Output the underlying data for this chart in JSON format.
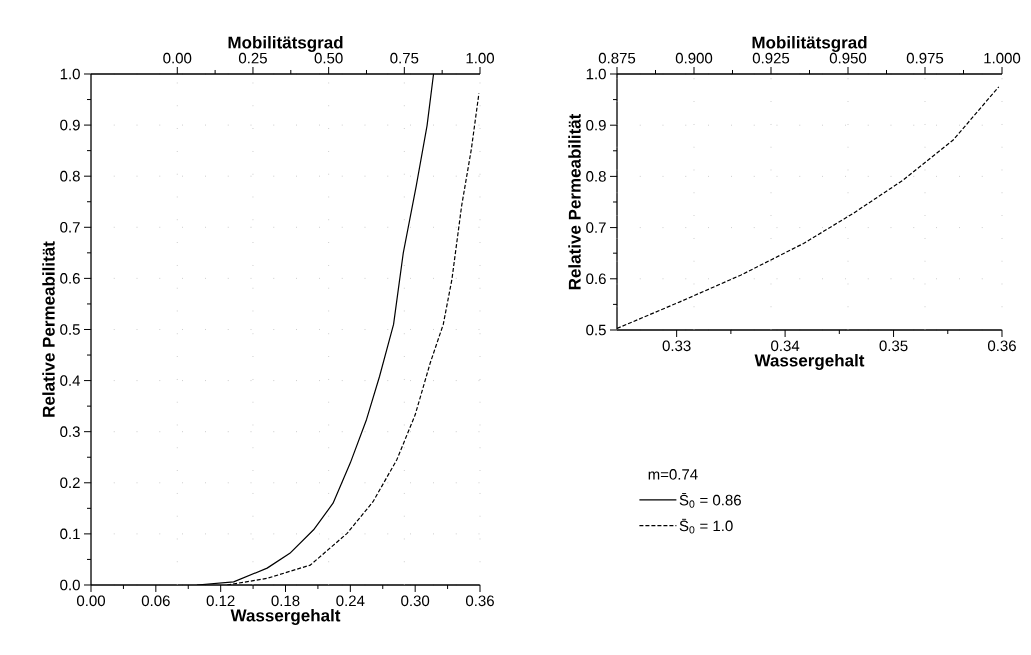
{
  "chart_data": [
    {
      "type": "line",
      "xlabel": "Wassergehalt",
      "x2label": "Mobilitätsgrad",
      "ylabel": "Relative Permeabilität",
      "legend_title": "m=0.74",
      "legend": "right",
      "grid": true,
      "marker": "none",
      "xlim": [
        0,
        0.36
      ],
      "ylim": [
        0,
        1
      ],
      "x2lim": [
        -0.285,
        1.0
      ],
      "xticks": [
        {
          "value": 0,
          "label": "0.00"
        },
        {
          "value": 0.06,
          "label": "0.06"
        },
        {
          "value": 0.12,
          "label": "0.12"
        },
        {
          "value": 0.18,
          "label": "0.18"
        },
        {
          "value": 0.24,
          "label": "0.24"
        },
        {
          "value": 0.3,
          "label": "0.30"
        },
        {
          "value": 0.36,
          "label": "0.36"
        }
      ],
      "x2ticks": [
        {
          "value": 0,
          "label": "0.00"
        },
        {
          "value": 0.25,
          "label": "0.25"
        },
        {
          "value": 0.5,
          "label": "0.50"
        },
        {
          "value": 0.75,
          "label": "0.75"
        },
        {
          "value": 1.0,
          "label": "1.00"
        }
      ],
      "yticks": [
        {
          "value": 0,
          "label": "0.0"
        },
        {
          "value": 0.1,
          "label": "0.1"
        },
        {
          "value": 0.2,
          "label": "0.2"
        },
        {
          "value": 0.3,
          "label": "0.3"
        },
        {
          "value": 0.4,
          "label": "0.4"
        },
        {
          "value": 0.5,
          "label": "0.5"
        },
        {
          "value": 0.6,
          "label": "0.6"
        },
        {
          "value": 0.7,
          "label": "0.7"
        },
        {
          "value": 0.8,
          "label": "0.8"
        },
        {
          "value": 0.9,
          "label": "0.9"
        },
        {
          "value": 1.0,
          "label": "1.0"
        }
      ],
      "series": [
        {
          "name": "S̄$_{0}$ = 0.86",
          "color": "#000000",
          "line_style": "solid",
          "x": [
            0.098,
            0.132,
            0.163,
            0.184,
            0.206,
            0.224,
            0.24,
            0.255,
            0.267,
            0.28,
            0.289,
            0.301,
            0.311,
            0.317
          ],
          "values": [
            0,
            0.006,
            0.033,
            0.062,
            0.108,
            0.16,
            0.239,
            0.324,
            0.408,
            0.51,
            0.65,
            0.781,
            0.899,
            1.0
          ]
        },
        {
          "name": "S̄$_{0}$ = 1.0",
          "color": "#000000",
          "line_style": "dashed",
          "x": [
            0.126,
            0.163,
            0.203,
            0.237,
            0.261,
            0.283,
            0.3,
            0.314,
            0.326,
            0.334,
            0.343,
            0.352,
            0.359
          ],
          "values": [
            0,
            0.013,
            0.039,
            0.101,
            0.163,
            0.245,
            0.333,
            0.435,
            0.51,
            0.598,
            0.742,
            0.853,
            0.962
          ]
        }
      ]
    },
    {
      "type": "line",
      "xlabel": "Wassergehalt",
      "x2label": "Mobilitätsgrad",
      "ylabel": "Relative Permeabilität",
      "grid": true,
      "marker": "none",
      "xlim": [
        0.3245,
        0.36
      ],
      "ylim": [
        0.5,
        1
      ],
      "x2lim": [
        0.875,
        1.0
      ],
      "xticks": [
        {
          "value": 0.33,
          "label": "0.33"
        },
        {
          "value": 0.34,
          "label": "0.34"
        },
        {
          "value": 0.35,
          "label": "0.35"
        },
        {
          "value": 0.36,
          "label": "0.36"
        }
      ],
      "x2ticks": [
        {
          "value": 0.875,
          "label": "0.875"
        },
        {
          "value": 0.9,
          "label": "0.900"
        },
        {
          "value": 0.925,
          "label": "0.925"
        },
        {
          "value": 0.95,
          "label": "0.950"
        },
        {
          "value": 0.975,
          "label": "0.975"
        },
        {
          "value": 1.0,
          "label": "1.000"
        }
      ],
      "yticks": [
        {
          "value": 0.5,
          "label": "0.5"
        },
        {
          "value": 0.6,
          "label": "0.6"
        },
        {
          "value": 0.7,
          "label": "0.7"
        },
        {
          "value": 0.8,
          "label": "0.8"
        },
        {
          "value": 0.9,
          "label": "0.9"
        },
        {
          "value": 1.0,
          "label": "1.0"
        }
      ],
      "series": [
        {
          "color": "#000000",
          "line_style": "dashed",
          "x": [
            0.3245,
            0.3303,
            0.3359,
            0.3417,
            0.3463,
            0.3509,
            0.3555,
            0.3597
          ],
          "values": [
            0.503,
            0.555,
            0.607,
            0.669,
            0.728,
            0.793,
            0.871,
            0.975
          ]
        }
      ]
    }
  ]
}
